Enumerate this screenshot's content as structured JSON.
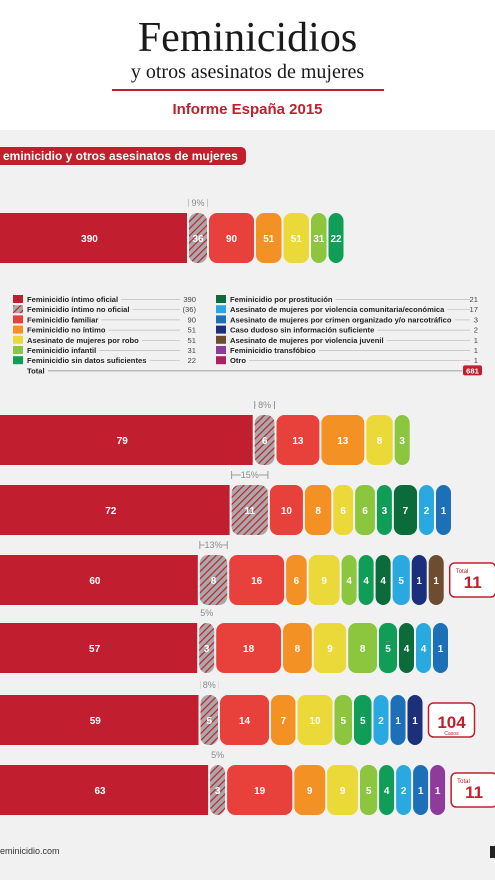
{
  "header": {
    "title": "Feminicidios",
    "subtitle": "y otros asesinatos de mujeres",
    "report": "Informe España 2015"
  },
  "section_label": "eminicidio y otros asesinatos de mujeres",
  "footer": {
    "url": "eminicidio.com"
  },
  "colors": {
    "brand": "#c0202e",
    "panel": "#f1f1f1",
    "categories": {
      "intimo_oficial": "#c11f2f",
      "intimo_no_oficial": "#c11f2f",
      "familiar": "#e8403a",
      "no_intimo": "#f39125",
      "robo": "#ebd93a",
      "infantil": "#8cc63f",
      "sin_datos": "#0f9d58",
      "prostitucion": "#0b6b3a",
      "violencia_comunitaria": "#2aa9e0",
      "crimen_organizado": "#1d6fb8",
      "caso_dudoso": "#1b2f7a",
      "violencia_juvenil": "#6d4c2f",
      "transfobico": "#8e3b9b",
      "otro": "#a8235f"
    }
  },
  "chart_data": {
    "type": "bar",
    "orientation": "horizontal-stacked",
    "legend": {
      "placement": "below-first-bar",
      "items": [
        {
          "key": "intimo_oficial",
          "label": "Feminicidio íntimo oficial",
          "value": "390"
        },
        {
          "key": "intimo_no_oficial",
          "label": "Feminicidio íntimo no oficial",
          "value": "(36)",
          "hatched": true
        },
        {
          "key": "familiar",
          "label": "Feminicidio familiar",
          "value": "90"
        },
        {
          "key": "no_intimo",
          "label": "Feminicidio no íntimo",
          "value": "51"
        },
        {
          "key": "robo",
          "label": "Asesinato de mujeres por robo",
          "value": "51"
        },
        {
          "key": "infantil",
          "label": "Feminicidio infantil",
          "value": "31"
        },
        {
          "key": "sin_datos",
          "label": "Feminicidio sin datos suficientes",
          "value": "22"
        },
        {
          "key": "prostitucion",
          "label": "Feminicidio por prostitución",
          "value": "21"
        },
        {
          "key": "violencia_comunitaria",
          "label": "Asesinato de mujeres por violencia comunitaria/económica",
          "value": "17"
        },
        {
          "key": "crimen_organizado",
          "label": "Asesinato de mujeres por crimen organizado y/o narcotráfico",
          "value": "3"
        },
        {
          "key": "caso_dudoso",
          "label": "Caso dudoso sin información suficiente",
          "value": "2"
        },
        {
          "key": "violencia_juvenil",
          "label": "Asesinato de mujeres por violencia juvenil",
          "value": "1"
        },
        {
          "key": "transfobico",
          "label": "Feminicidio transfóbico",
          "value": "1"
        },
        {
          "key": "otro",
          "label": "Otro",
          "value": "1"
        }
      ],
      "total_label": "Total",
      "total_value": "681"
    },
    "bars": [
      {
        "pct_label": "9%",
        "segments": [
          {
            "key": "intimo_oficial",
            "value": 390
          },
          {
            "key": "intimo_no_oficial",
            "value": 36,
            "hatched": true
          },
          {
            "key": "familiar",
            "value": 90
          },
          {
            "key": "no_intimo",
            "value": 51
          },
          {
            "key": "robo",
            "value": 51
          },
          {
            "key": "infantil",
            "value": 31
          },
          {
            "key": "sin_datos",
            "value": 22
          }
        ]
      },
      {
        "pct_label": "8%",
        "segments": [
          {
            "key": "intimo_oficial",
            "value": 79
          },
          {
            "key": "intimo_no_oficial",
            "value": 6,
            "hatched": true
          },
          {
            "key": "familiar",
            "value": 13
          },
          {
            "key": "no_intimo",
            "value": 13
          },
          {
            "key": "robo",
            "value": 8
          },
          {
            "key": "infantil",
            "value": 3
          }
        ]
      },
      {
        "pct_label": "15%",
        "segments": [
          {
            "key": "intimo_oficial",
            "value": 72
          },
          {
            "key": "intimo_no_oficial",
            "value": 11,
            "hatched": true
          },
          {
            "key": "familiar",
            "value": 10
          },
          {
            "key": "no_intimo",
            "value": 8
          },
          {
            "key": "robo",
            "value": 6
          },
          {
            "key": "infantil",
            "value": 6
          },
          {
            "key": "sin_datos",
            "value": 3
          },
          {
            "key": "prostitucion",
            "value": 7
          },
          {
            "key": "violencia_comunitaria",
            "value": 2
          },
          {
            "key": "crimen_organizado",
            "value": 1
          }
        ]
      },
      {
        "pct_label": "13%",
        "total_badge": {
          "top": "Total",
          "value": "11"
        },
        "segments": [
          {
            "key": "intimo_oficial",
            "value": 60
          },
          {
            "key": "intimo_no_oficial",
            "value": 8,
            "hatched": true
          },
          {
            "key": "familiar",
            "value": 16
          },
          {
            "key": "no_intimo",
            "value": 6
          },
          {
            "key": "robo",
            "value": 9
          },
          {
            "key": "infantil",
            "value": 4
          },
          {
            "key": "sin_datos",
            "value": 4
          },
          {
            "key": "prostitucion",
            "value": 4
          },
          {
            "key": "violencia_comunitaria",
            "value": 5
          },
          {
            "key": "caso_dudoso",
            "value": 1
          },
          {
            "key": "violencia_juvenil",
            "value": 1
          }
        ]
      },
      {
        "pct_label": "5%",
        "segments": [
          {
            "key": "intimo_oficial",
            "value": 57
          },
          {
            "key": "intimo_no_oficial",
            "value": 3,
            "hatched": true
          },
          {
            "key": "familiar",
            "value": 18
          },
          {
            "key": "no_intimo",
            "value": 8
          },
          {
            "key": "robo",
            "value": 9
          },
          {
            "key": "infantil",
            "value": 8
          },
          {
            "key": "sin_datos",
            "value": 5
          },
          {
            "key": "prostitucion",
            "value": 4
          },
          {
            "key": "violencia_comunitaria",
            "value": 4
          },
          {
            "key": "crimen_organizado",
            "value": 1
          }
        ]
      },
      {
        "pct_label": "8%",
        "total_badge": {
          "value": "104",
          "bottom": "Casos"
        },
        "segments": [
          {
            "key": "intimo_oficial",
            "value": 59
          },
          {
            "key": "intimo_no_oficial",
            "value": 5,
            "hatched": true
          },
          {
            "key": "familiar",
            "value": 14
          },
          {
            "key": "no_intimo",
            "value": 7
          },
          {
            "key": "robo",
            "value": 10
          },
          {
            "key": "infantil",
            "value": 5
          },
          {
            "key": "sin_datos",
            "value": 5
          },
          {
            "key": "violencia_comunitaria",
            "value": 2
          },
          {
            "key": "crimen_organizado",
            "value": 1
          },
          {
            "key": "caso_dudoso",
            "value": 1
          }
        ]
      },
      {
        "pct_label": "5%",
        "total_badge": {
          "top": "Total",
          "value": "11"
        },
        "segments": [
          {
            "key": "intimo_oficial",
            "value": 63
          },
          {
            "key": "intimo_no_oficial",
            "value": 3,
            "hatched": true
          },
          {
            "key": "familiar",
            "value": 19
          },
          {
            "key": "no_intimo",
            "value": 9
          },
          {
            "key": "robo",
            "value": 9
          },
          {
            "key": "infantil",
            "value": 5
          },
          {
            "key": "sin_datos",
            "value": 4
          },
          {
            "key": "violencia_comunitaria",
            "value": 2
          },
          {
            "key": "crimen_organizado",
            "value": 1
          },
          {
            "key": "transfobico",
            "value": 1
          }
        ]
      }
    ]
  }
}
